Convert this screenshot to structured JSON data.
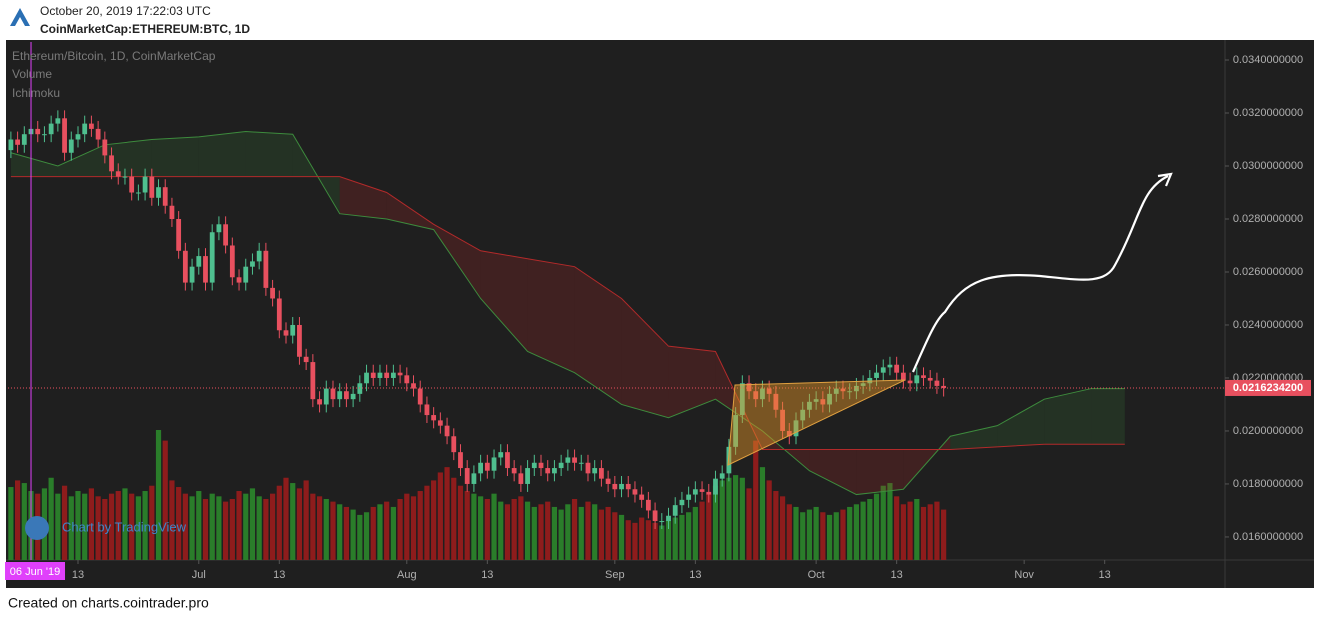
{
  "header": {
    "datetime": "October 20, 2019 17:22:03 UTC",
    "symbol": "CoinMarketCap:ETHEREUM:BTC, 1D"
  },
  "chart_data": {
    "type": "candlestick",
    "title": "Ethereum/Bitcoin, 1D, CoinMarketCap",
    "indicators": [
      "Volume",
      "Ichimoku"
    ],
    "watermark": "Chart by TradingView",
    "up_color": "#4fbf8f",
    "down_color": "#e8505f",
    "ohlc": [
      [
        0.0306,
        0.0313,
        0.0303,
        0.031
      ],
      [
        0.031,
        0.0313,
        0.0305,
        0.0308
      ],
      [
        0.0308,
        0.0315,
        0.0305,
        0.0312
      ],
      [
        0.0312,
        0.0317,
        0.0309,
        0.0314
      ],
      [
        0.0314,
        0.0317,
        0.0309,
        0.0312
      ],
      [
        0.0312,
        0.0315,
        0.0309,
        0.0312
      ],
      [
        0.0312,
        0.0319,
        0.0309,
        0.0316
      ],
      [
        0.0316,
        0.0321,
        0.0313,
        0.0318
      ],
      [
        0.0318,
        0.0321,
        0.0302,
        0.0305
      ],
      [
        0.0305,
        0.0313,
        0.0302,
        0.031
      ],
      [
        0.031,
        0.0315,
        0.0307,
        0.0312
      ],
      [
        0.0312,
        0.0319,
        0.0309,
        0.0316
      ],
      [
        0.0316,
        0.0319,
        0.0311,
        0.0314
      ],
      [
        0.0314,
        0.0317,
        0.0307,
        0.031
      ],
      [
        0.031,
        0.0313,
        0.0301,
        0.0304
      ],
      [
        0.0304,
        0.0307,
        0.0295,
        0.0298
      ],
      [
        0.0298,
        0.0301,
        0.0293,
        0.0296
      ],
      [
        0.0296,
        0.0299,
        0.0293,
        0.0296
      ],
      [
        0.0296,
        0.0299,
        0.0287,
        0.029
      ],
      [
        0.029,
        0.0293,
        0.0287,
        0.029
      ],
      [
        0.029,
        0.0299,
        0.0287,
        0.0296
      ],
      [
        0.0296,
        0.0299,
        0.0285,
        0.0288
      ],
      [
        0.0288,
        0.0295,
        0.0285,
        0.0292
      ],
      [
        0.0292,
        0.0295,
        0.0282,
        0.0285
      ],
      [
        0.0285,
        0.0288,
        0.0277,
        0.028
      ],
      [
        0.028,
        0.0283,
        0.0265,
        0.0268
      ],
      [
        0.0268,
        0.0271,
        0.0253,
        0.0256
      ],
      [
        0.0256,
        0.0265,
        0.0253,
        0.0262
      ],
      [
        0.0262,
        0.0269,
        0.0259,
        0.0266
      ],
      [
        0.0266,
        0.0269,
        0.0253,
        0.0256
      ],
      [
        0.0256,
        0.0278,
        0.0253,
        0.0275
      ],
      [
        0.0275,
        0.0281,
        0.0272,
        0.0278
      ],
      [
        0.0278,
        0.0281,
        0.0267,
        0.027
      ],
      [
        0.027,
        0.0273,
        0.0255,
        0.0258
      ],
      [
        0.0258,
        0.0261,
        0.0253,
        0.0256
      ],
      [
        0.0256,
        0.0265,
        0.0253,
        0.0262
      ],
      [
        0.0262,
        0.0267,
        0.0259,
        0.0264
      ],
      [
        0.0264,
        0.0271,
        0.0261,
        0.0268
      ],
      [
        0.0268,
        0.0271,
        0.0251,
        0.0254
      ],
      [
        0.0254,
        0.0257,
        0.0247,
        0.025
      ],
      [
        0.025,
        0.0253,
        0.0235,
        0.0238
      ],
      [
        0.0238,
        0.0241,
        0.0233,
        0.0236
      ],
      [
        0.0236,
        0.0243,
        0.0233,
        0.024
      ],
      [
        0.024,
        0.0243,
        0.0225,
        0.0228
      ],
      [
        0.0228,
        0.0231,
        0.0223,
        0.0226
      ],
      [
        0.0226,
        0.0229,
        0.0209,
        0.0212
      ],
      [
        0.0212,
        0.0215,
        0.0207,
        0.021
      ],
      [
        0.021,
        0.0219,
        0.0207,
        0.0216
      ],
      [
        0.0216,
        0.0219,
        0.0209,
        0.0212
      ],
      [
        0.0212,
        0.0218,
        0.0209,
        0.0215
      ],
      [
        0.0215,
        0.0218,
        0.0209,
        0.0212
      ],
      [
        0.0212,
        0.0217,
        0.0209,
        0.0214
      ],
      [
        0.0214,
        0.0221,
        0.0211,
        0.0218
      ],
      [
        0.0218,
        0.0225,
        0.0215,
        0.0222
      ],
      [
        0.0222,
        0.0225,
        0.0217,
        0.022
      ],
      [
        0.022,
        0.0225,
        0.0217,
        0.0222
      ],
      [
        0.0222,
        0.0225,
        0.0217,
        0.022
      ],
      [
        0.022,
        0.0225,
        0.0217,
        0.0222
      ],
      [
        0.0222,
        0.0225,
        0.0218,
        0.0221
      ],
      [
        0.0221,
        0.0224,
        0.0215,
        0.0218
      ],
      [
        0.0218,
        0.0221,
        0.0213,
        0.0216
      ],
      [
        0.0216,
        0.0219,
        0.0207,
        0.021
      ],
      [
        0.021,
        0.0213,
        0.0203,
        0.0206
      ],
      [
        0.0206,
        0.0209,
        0.0201,
        0.0204
      ],
      [
        0.0204,
        0.0207,
        0.0199,
        0.0202
      ],
      [
        0.0202,
        0.0205,
        0.0195,
        0.0198
      ],
      [
        0.0198,
        0.0201,
        0.0189,
        0.0192
      ],
      [
        0.0192,
        0.0195,
        0.0183,
        0.0186
      ],
      [
        0.0186,
        0.0189,
        0.0177,
        0.018
      ],
      [
        0.018,
        0.0187,
        0.0177,
        0.0184
      ],
      [
        0.0184,
        0.0191,
        0.0181,
        0.0188
      ],
      [
        0.0188,
        0.0191,
        0.0182,
        0.0185
      ],
      [
        0.0185,
        0.0193,
        0.0182,
        0.019
      ],
      [
        0.019,
        0.0195,
        0.0187,
        0.0192
      ],
      [
        0.0192,
        0.0195,
        0.0183,
        0.0186
      ],
      [
        0.0186,
        0.0189,
        0.0181,
        0.0184
      ],
      [
        0.0184,
        0.0187,
        0.0177,
        0.018
      ],
      [
        0.018,
        0.0189,
        0.0177,
        0.0186
      ],
      [
        0.0186,
        0.0191,
        0.0183,
        0.0188
      ],
      [
        0.0188,
        0.0191,
        0.0183,
        0.0186
      ],
      [
        0.0186,
        0.0189,
        0.0181,
        0.0184
      ],
      [
        0.0184,
        0.0189,
        0.0181,
        0.0186
      ],
      [
        0.0186,
        0.0191,
        0.0183,
        0.0188
      ],
      [
        0.0188,
        0.0193,
        0.0185,
        0.019
      ],
      [
        0.019,
        0.0193,
        0.0185,
        0.0188
      ],
      [
        0.0188,
        0.0191,
        0.0185,
        0.0188
      ],
      [
        0.0188,
        0.0191,
        0.0181,
        0.0184
      ],
      [
        0.0184,
        0.0189,
        0.0181,
        0.0186
      ],
      [
        0.0186,
        0.0189,
        0.0179,
        0.0182
      ],
      [
        0.0182,
        0.0185,
        0.0177,
        0.018
      ],
      [
        0.018,
        0.0183,
        0.0175,
        0.0178
      ],
      [
        0.0178,
        0.0183,
        0.0175,
        0.018
      ],
      [
        0.018,
        0.0183,
        0.0175,
        0.0178
      ],
      [
        0.0178,
        0.0181,
        0.0173,
        0.0176
      ],
      [
        0.0176,
        0.0179,
        0.0171,
        0.0174
      ],
      [
        0.0174,
        0.0177,
        0.0167,
        0.017
      ],
      [
        0.017,
        0.0173,
        0.0163,
        0.0166
      ],
      [
        0.0166,
        0.0169,
        0.0163,
        0.0166
      ],
      [
        0.0166,
        0.0171,
        0.0163,
        0.0168
      ],
      [
        0.0168,
        0.0175,
        0.0165,
        0.0172
      ],
      [
        0.0172,
        0.0177,
        0.0169,
        0.0174
      ],
      [
        0.0174,
        0.0179,
        0.0171,
        0.0176
      ],
      [
        0.0176,
        0.0181,
        0.0173,
        0.0178
      ],
      [
        0.0178,
        0.0181,
        0.0174,
        0.0177
      ],
      [
        0.0177,
        0.018,
        0.0173,
        0.0176
      ],
      [
        0.0176,
        0.0185,
        0.0173,
        0.0182
      ],
      [
        0.0182,
        0.0187,
        0.0179,
        0.0184
      ],
      [
        0.0184,
        0.0197,
        0.0181,
        0.0194
      ],
      [
        0.0194,
        0.0209,
        0.0191,
        0.0206
      ],
      [
        0.0206,
        0.0221,
        0.0203,
        0.0218
      ],
      [
        0.0218,
        0.0221,
        0.0212,
        0.0215
      ],
      [
        0.0215,
        0.0218,
        0.0209,
        0.0212
      ],
      [
        0.0212,
        0.0219,
        0.0209,
        0.0216
      ],
      [
        0.0216,
        0.0219,
        0.0211,
        0.0214
      ],
      [
        0.0214,
        0.0217,
        0.0205,
        0.0208
      ],
      [
        0.0208,
        0.0211,
        0.0197,
        0.02
      ],
      [
        0.02,
        0.0203,
        0.0195,
        0.0198
      ],
      [
        0.0198,
        0.0207,
        0.0195,
        0.0204
      ],
      [
        0.0204,
        0.0211,
        0.0201,
        0.0208
      ],
      [
        0.0208,
        0.0214,
        0.0205,
        0.0211
      ],
      [
        0.0211,
        0.0215,
        0.0208,
        0.0212
      ],
      [
        0.0212,
        0.0215,
        0.0207,
        0.021
      ],
      [
        0.021,
        0.0217,
        0.0207,
        0.0214
      ],
      [
        0.0214,
        0.0219,
        0.0211,
        0.0216
      ],
      [
        0.0216,
        0.0219,
        0.0212,
        0.0215
      ],
      [
        0.0215,
        0.0218,
        0.0212,
        0.0215
      ],
      [
        0.0215,
        0.022,
        0.0212,
        0.0217
      ],
      [
        0.0217,
        0.0221,
        0.0214,
        0.0218
      ],
      [
        0.0218,
        0.0223,
        0.0215,
        0.022
      ],
      [
        0.022,
        0.0225,
        0.0217,
        0.0222
      ],
      [
        0.0222,
        0.0227,
        0.0219,
        0.0224
      ],
      [
        0.0224,
        0.0228,
        0.0221,
        0.0225
      ],
      [
        0.0225,
        0.0228,
        0.0219,
        0.0222
      ],
      [
        0.0222,
        0.0225,
        0.0216,
        0.0219
      ],
      [
        0.0219,
        0.0222,
        0.0215,
        0.0218
      ],
      [
        0.0218,
        0.0224,
        0.0215,
        0.0221
      ],
      [
        0.0221,
        0.0224,
        0.0217,
        0.022
      ],
      [
        0.022,
        0.0223,
        0.0216,
        0.0219
      ],
      [
        0.0219,
        0.0222,
        0.0214,
        0.0217
      ],
      [
        0.0217,
        0.022,
        0.0213,
        0.02162342
      ]
    ],
    "volume": {
      "up_color": "#2a7d2a",
      "down_color": "#8e1c1c",
      "values": [
        55,
        60,
        58,
        52,
        50,
        54,
        62,
        50,
        56,
        48,
        52,
        50,
        54,
        48,
        46,
        50,
        52,
        54,
        50,
        48,
        52,
        56,
        98,
        90,
        60,
        55,
        50,
        48,
        52,
        46,
        50,
        48,
        44,
        46,
        52,
        50,
        54,
        48,
        46,
        50,
        56,
        62,
        58,
        54,
        60,
        50,
        48,
        46,
        44,
        42,
        40,
        38,
        34,
        36,
        40,
        42,
        44,
        40,
        46,
        50,
        48,
        52,
        56,
        60,
        66,
        70,
        62,
        56,
        52,
        50,
        48,
        46,
        50,
        44,
        42,
        46,
        48,
        44,
        40,
        42,
        44,
        40,
        38,
        42,
        46,
        40,
        44,
        42,
        38,
        40,
        36,
        34,
        30,
        28,
        32,
        30,
        28,
        26,
        30,
        32,
        34,
        36,
        40,
        44,
        50,
        56,
        60,
        62,
        64,
        62,
        54,
        90,
        70,
        60,
        52,
        48,
        42,
        40,
        36,
        38,
        40,
        36,
        34,
        36,
        38,
        40,
        42,
        44,
        46,
        50,
        56,
        58,
        48,
        42,
        44,
        46,
        40,
        42,
        44,
        38
      ]
    },
    "ichimoku": {
      "x": [
        0,
        7,
        14,
        21,
        28,
        35,
        42,
        49,
        56,
        63,
        70,
        77,
        84,
        91,
        98,
        105,
        112,
        119,
        126,
        133,
        140,
        147,
        154,
        161,
        166
      ],
      "span_a": {
        "color": "#3d8b3d",
        "values": [
          0.0305,
          0.03,
          0.0308,
          0.031,
          0.0311,
          0.0313,
          0.0312,
          0.0282,
          0.028,
          0.0276,
          0.025,
          0.023,
          0.0222,
          0.021,
          0.0205,
          0.0212,
          0.02,
          0.0185,
          0.0176,
          0.0178,
          0.0198,
          0.0202,
          0.0212,
          0.0216,
          0.0216
        ]
      },
      "span_b": {
        "color": "#b22a2a",
        "values": [
          0.0296,
          0.0296,
          0.0296,
          0.0296,
          0.0296,
          0.0296,
          0.0296,
          0.0296,
          0.029,
          0.0278,
          0.0268,
          0.0265,
          0.0262,
          0.025,
          0.0232,
          0.023,
          0.0193,
          0.0193,
          0.0193,
          0.0193,
          0.0193,
          0.0194,
          0.0195,
          0.0195,
          0.0195
        ]
      }
    },
    "xlim": [
      -0.43,
      180.93
    ],
    "xticks": [
      {
        "value": 10,
        "label": "13"
      },
      {
        "value": 28,
        "label": "Jul"
      },
      {
        "value": 40,
        "label": "13"
      },
      {
        "value": 59,
        "label": "Aug"
      },
      {
        "value": 71,
        "label": "13"
      },
      {
        "value": 90,
        "label": "Sep"
      },
      {
        "value": 102,
        "label": "13"
      },
      {
        "value": 120,
        "label": "Oct"
      },
      {
        "value": 132,
        "label": "13"
      },
      {
        "value": 151,
        "label": "Nov"
      },
      {
        "value": 163,
        "label": "13"
      }
    ],
    "ylim": [
      0.01513,
      0.03468
    ],
    "yticks": [
      {
        "value": 0.034,
        "label": "0.0340000000"
      },
      {
        "value": 0.032,
        "label": "0.0320000000"
      },
      {
        "value": 0.03,
        "label": "0.0300000000"
      },
      {
        "value": 0.028,
        "label": "0.0280000000"
      },
      {
        "value": 0.026,
        "label": "0.0260000000"
      },
      {
        "value": 0.024,
        "label": "0.0240000000"
      },
      {
        "value": 0.022,
        "label": "0.0220000000"
      },
      {
        "value": 0.02,
        "label": "0.0200000000"
      },
      {
        "value": 0.018,
        "label": "0.0180000000"
      },
      {
        "value": 0.016,
        "label": "0.0160000000"
      }
    ],
    "last_price": {
      "value": 0.02162342,
      "label": "0.0216234200",
      "color": "#e8505f"
    },
    "cursor": {
      "value": 3,
      "label": "06 Jun '19",
      "color": "#e040fb"
    }
  },
  "footer": "Created on charts.cointrader.pro"
}
